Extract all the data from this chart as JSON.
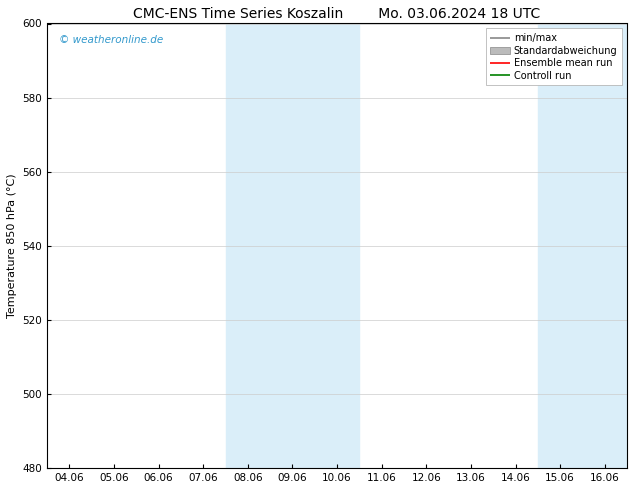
{
  "title_left": "CMC-ENS Time Series Koszalin",
  "title_right": "Mo. 03.06.2024 18 UTC",
  "ylabel": "Temperature 850 hPa (°C)",
  "watermark": "© weatheronline.de",
  "xlim_dates": [
    "04.06",
    "05.06",
    "06.06",
    "07.06",
    "08.06",
    "09.06",
    "10.06",
    "11.06",
    "12.06",
    "13.06",
    "14.06",
    "15.06",
    "16.06"
  ],
  "ylim": [
    480,
    600
  ],
  "yticks": [
    480,
    500,
    520,
    540,
    560,
    580,
    600
  ],
  "shaded_regions": [
    {
      "xstart": 4,
      "xend": 6,
      "color": "#daeef9"
    },
    {
      "xstart": 11,
      "xend": 12,
      "color": "#daeef9"
    }
  ],
  "legend_entries": [
    {
      "label": "min/max",
      "color": "#888888",
      "lw": 1.2,
      "style": "line"
    },
    {
      "label": "Standardabweichung",
      "color": "#bbbbbb",
      "lw": 5,
      "style": "band"
    },
    {
      "label": "Ensemble mean run",
      "color": "red",
      "lw": 1.2,
      "style": "line"
    },
    {
      "label": "Controll run",
      "color": "green",
      "lw": 1.2,
      "style": "line"
    }
  ],
  "background_color": "#ffffff",
  "grid_color": "#cccccc",
  "title_fontsize": 10,
  "axis_fontsize": 8,
  "tick_fontsize": 7.5,
  "watermark_color": "#3399cc"
}
